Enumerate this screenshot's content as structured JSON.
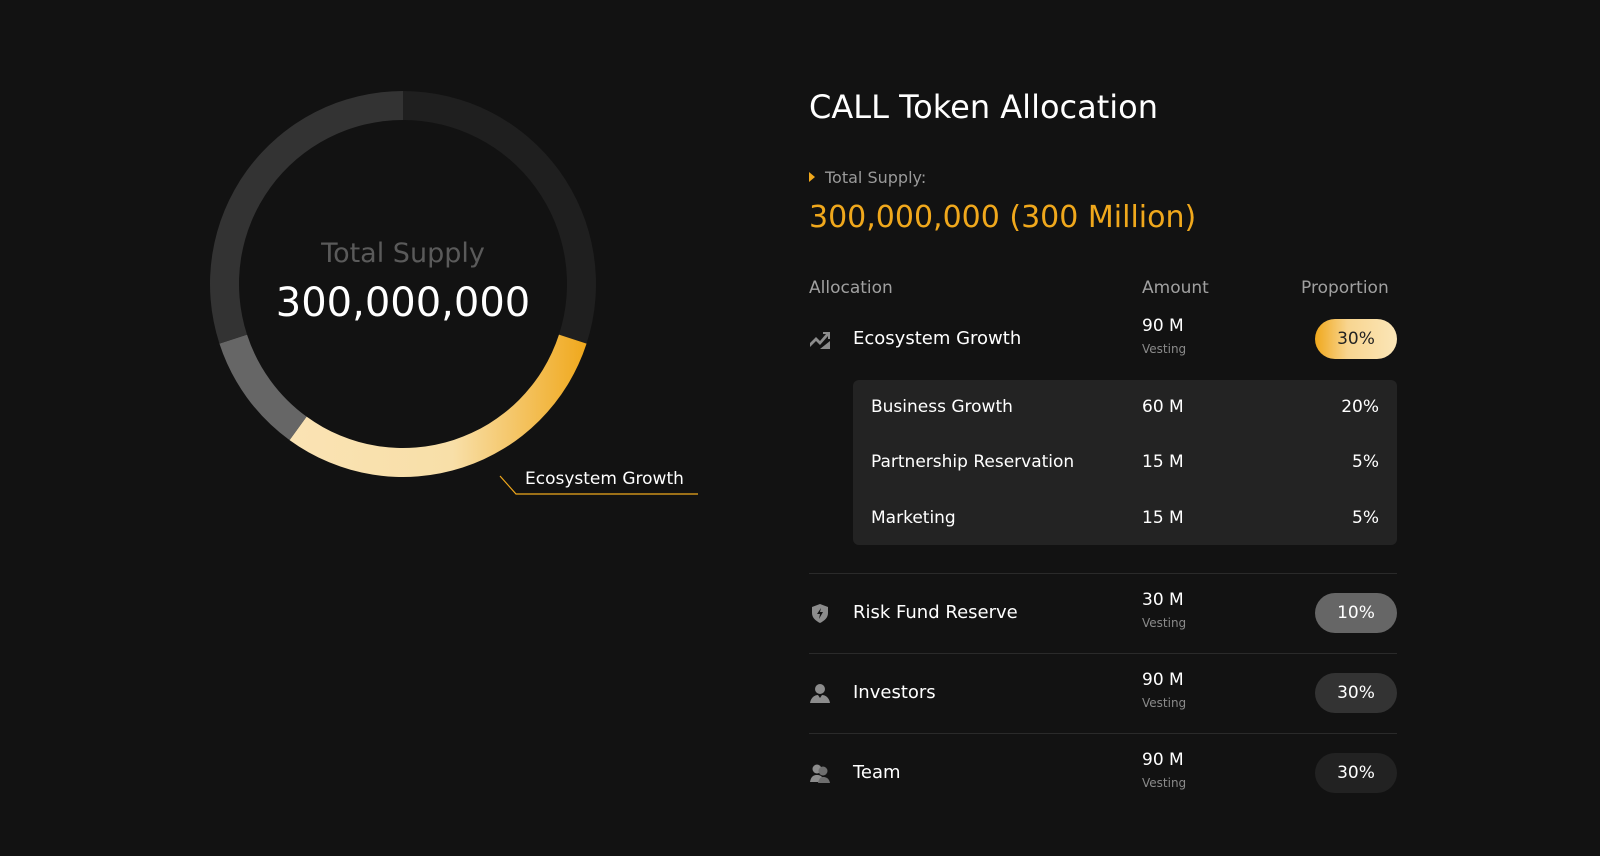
{
  "chart_data": {
    "type": "pie",
    "center_title": "Total Supply",
    "center_value": "300,000,000",
    "highlighted_label": "Ecosystem Growth",
    "slices": [
      {
        "name": "Team",
        "value": 30,
        "color": "#1f1f1f"
      },
      {
        "name": "Ecosystem Growth",
        "value": 30,
        "color": "#f0a81c",
        "gradient_to": "#fae3b4"
      },
      {
        "name": "Risk Fund Reserve",
        "value": 10,
        "color": "#666666"
      },
      {
        "name": "Investors",
        "value": 30,
        "color": "#333333"
      }
    ]
  },
  "panel": {
    "title": "CALL Token Allocation",
    "total_supply_label": "Total Supply:",
    "total_supply_value": "300,000,000 (300 Million)",
    "accent": "#f0a81c",
    "headers": {
      "allocation": "Allocation",
      "amount": "Amount",
      "proportion": "Proportion"
    },
    "rows": [
      {
        "icon": "chart-growth-icon",
        "name": "Ecosystem Growth",
        "amount": "90 M",
        "note": "Vesting",
        "proportion": "30%",
        "sub": [
          {
            "name": "Business Growth",
            "amount": "60 M",
            "proportion": "20%"
          },
          {
            "name": "Partnership Reservation",
            "amount": "15 M",
            "proportion": "5%"
          },
          {
            "name": "Marketing",
            "amount": "15 M",
            "proportion": "5%"
          }
        ]
      },
      {
        "icon": "shield-bolt-icon",
        "name": "Risk Fund Reserve",
        "amount": "30 M",
        "note": "Vesting",
        "proportion": "10%"
      },
      {
        "icon": "person-icon",
        "name": "Investors",
        "amount": "90 M",
        "note": "Vesting",
        "proportion": "30%"
      },
      {
        "icon": "people-icon",
        "name": "Team",
        "amount": "90 M",
        "note": "Vesting",
        "proportion": "30%"
      }
    ]
  }
}
